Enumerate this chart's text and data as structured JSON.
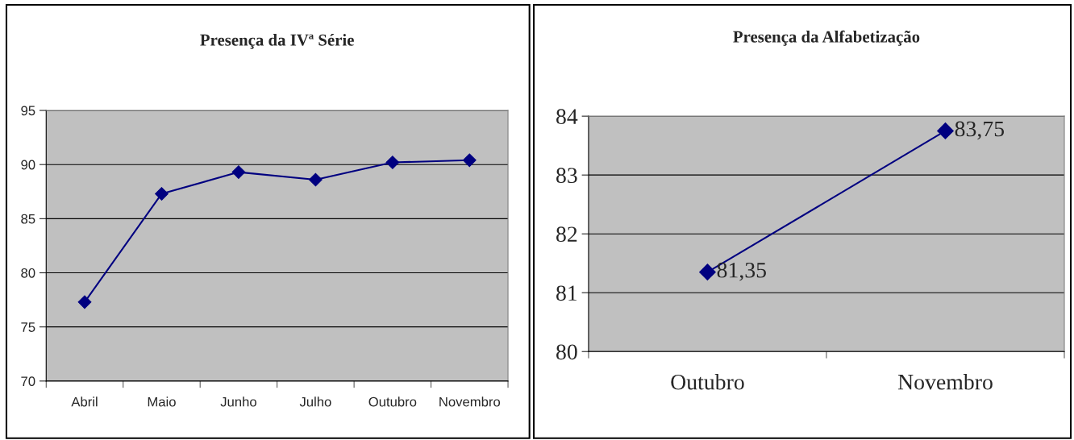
{
  "chart_data": [
    {
      "type": "line",
      "title": "Presença da IVª Série",
      "categories": [
        "Abril",
        "Maio",
        "Junho",
        "Julho",
        "Outubro",
        "Novembro"
      ],
      "series": [
        {
          "color": "#000080",
          "values": [
            77.3,
            87.3,
            89.3,
            88.6,
            90.2,
            90.4
          ]
        }
      ],
      "ylim": [
        70,
        95
      ],
      "yticks": [
        70,
        75,
        80,
        85,
        90,
        95
      ],
      "grid": "y",
      "marker": "diamond",
      "legend": false
    },
    {
      "type": "line",
      "title": "Presença da Alfabetização",
      "categories": [
        "Outubro",
        "Novembro"
      ],
      "series": [
        {
          "color": "#000080",
          "values": [
            81.35,
            83.75
          ]
        }
      ],
      "value_labels": [
        "81,35",
        "83,75"
      ],
      "ylim": [
        80,
        84
      ],
      "yticks": [
        80,
        81,
        82,
        83,
        84
      ],
      "grid": "y",
      "marker": "diamond",
      "legend": false
    }
  ]
}
